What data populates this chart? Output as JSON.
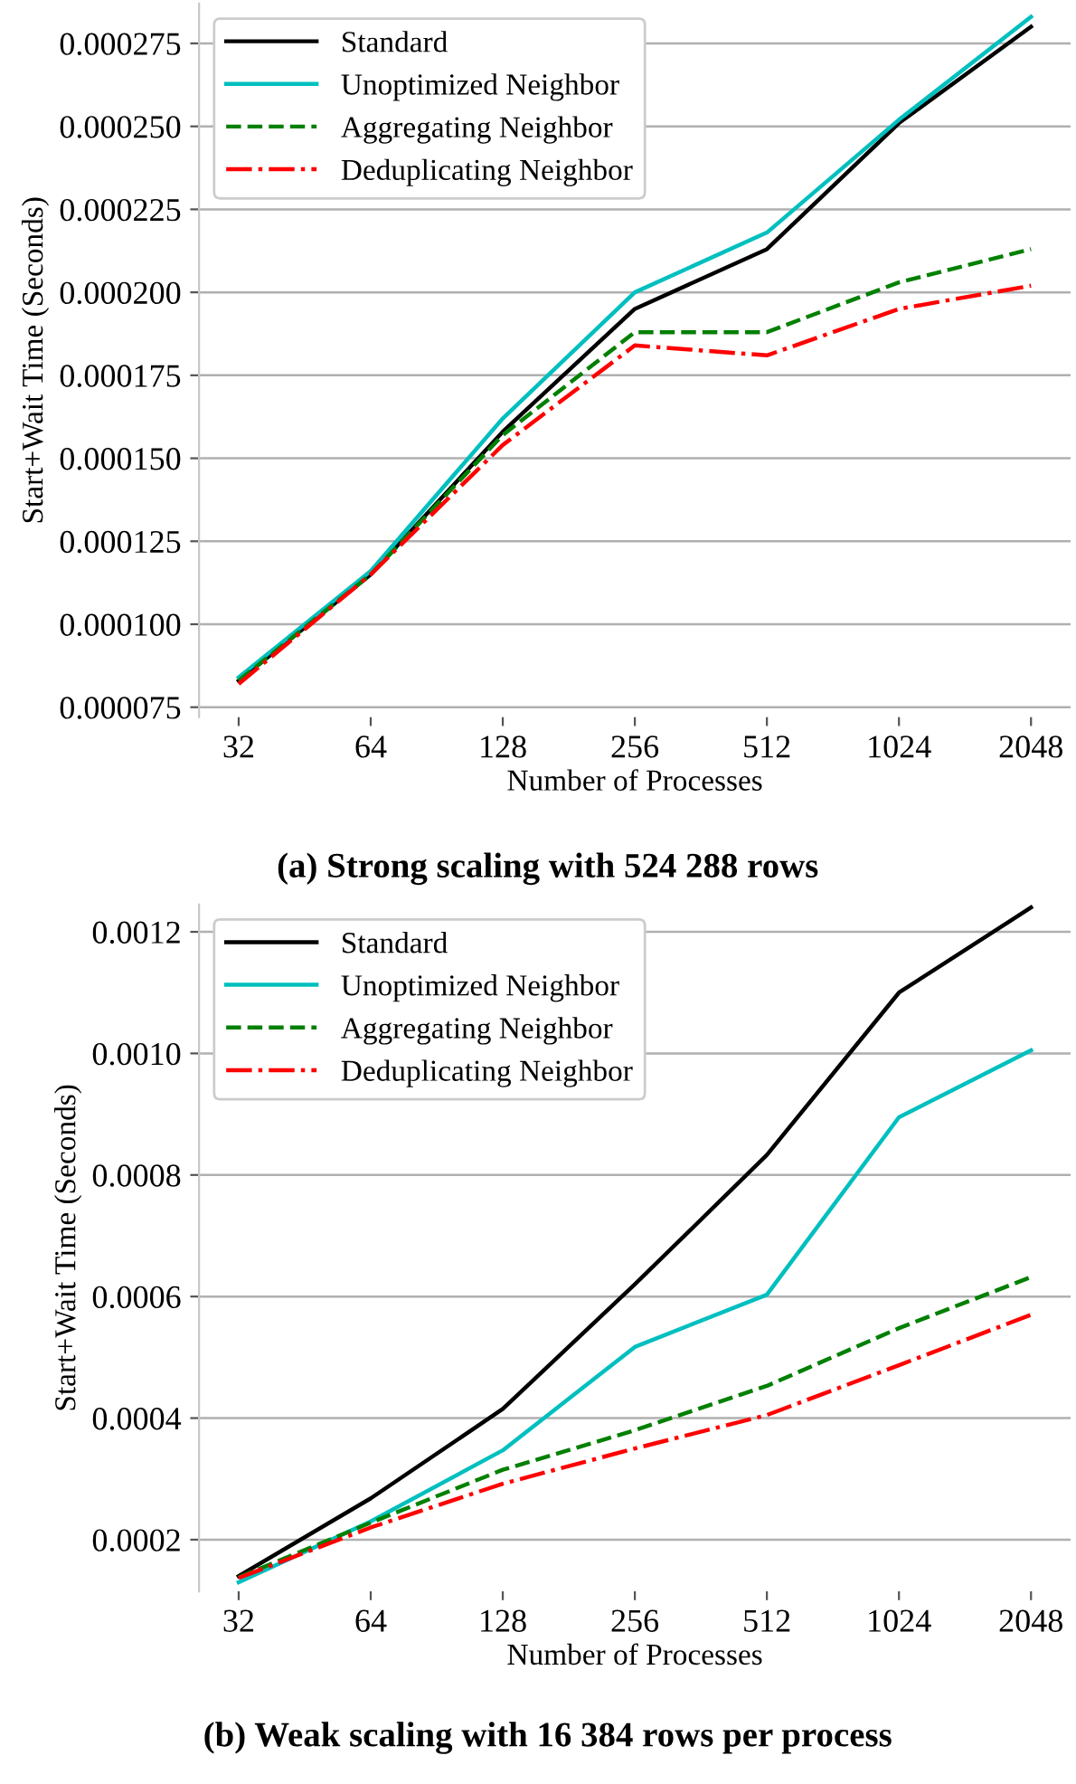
{
  "chart_data": [
    {
      "type": "line",
      "title": "(a) Strong scaling with 524 288 rows",
      "xlabel": "Number of Processes",
      "ylabel": "Start+Wait Time (Seconds)",
      "categories": [
        "32",
        "64",
        "128",
        "256",
        "512",
        "1024",
        "2048"
      ],
      "series": [
        {
          "name": "Standard",
          "color": "#000000",
          "line_style": "solid",
          "values": [
            8.3e-05,
            0.000115,
            0.000158,
            0.000195,
            0.000213,
            0.000251,
            0.00028
          ]
        },
        {
          "name": "Unoptimized Neighbor",
          "color": "#00bfbf",
          "line_style": "solid",
          "values": [
            8.4e-05,
            0.000116,
            0.000162,
            0.0002,
            0.000218,
            0.000252,
            0.000283
          ]
        },
        {
          "name": "Aggregating Neighbor",
          "color": "#008000",
          "line_style": "dashed",
          "values": [
            8.3e-05,
            0.000115,
            0.000157,
            0.000188,
            0.000188,
            0.000203,
            0.000213
          ]
        },
        {
          "name": "Deduplicating Neighbor",
          "color": "#ff0000",
          "line_style": "dashdot",
          "values": [
            8.2e-05,
            0.000115,
            0.000154,
            0.000184,
            0.000181,
            0.000195,
            0.000202
          ]
        }
      ],
      "yticks": [
        {
          "value": 7.5e-05,
          "label": "0.000075"
        },
        {
          "value": 0.0001,
          "label": "0.000100"
        },
        {
          "value": 0.000125,
          "label": "0.000125"
        },
        {
          "value": 0.00015,
          "label": "0.000150"
        },
        {
          "value": 0.000175,
          "label": "0.000175"
        },
        {
          "value": 0.0002,
          "label": "0.000200"
        },
        {
          "value": 0.000225,
          "label": "0.000225"
        },
        {
          "value": 0.00025,
          "label": "0.000250"
        },
        {
          "value": 0.000275,
          "label": "0.000275"
        }
      ],
      "ylim": [
        7.2e-05,
        0.000287
      ],
      "grid": "y",
      "legend": "top left",
      "marker": "none"
    },
    {
      "type": "line",
      "title": "(b) Weak scaling with 16 384 rows per process",
      "xlabel": "Number of Processes",
      "ylabel": "Start+Wait Time (Seconds)",
      "categories": [
        "32",
        "64",
        "128",
        "256",
        "512",
        "1024",
        "2048"
      ],
      "series": [
        {
          "name": "Standard",
          "color": "#000000",
          "line_style": "solid",
          "values": [
            0.00014,
            0.000268,
            0.000415,
            0.00062,
            0.000833,
            0.0011,
            0.00124
          ]
        },
        {
          "name": "Unoptimized Neighbor",
          "color": "#00bfbf",
          "line_style": "solid",
          "values": [
            0.00013,
            0.00023,
            0.000347,
            0.000517,
            0.000603,
            0.000895,
            0.001005
          ]
        },
        {
          "name": "Aggregating Neighbor",
          "color": "#008000",
          "line_style": "dashed",
          "values": [
            0.000138,
            0.000228,
            0.000315,
            0.00038,
            0.000453,
            0.000548,
            0.000632
          ]
        },
        {
          "name": "Deduplicating Neighbor",
          "color": "#ff0000",
          "line_style": "dashdot",
          "values": [
            0.000137,
            0.00022,
            0.000292,
            0.00035,
            0.000405,
            0.000487,
            0.00057
          ]
        }
      ],
      "yticks": [
        0.0002,
        0.0004,
        0.0006,
        0.0008,
        {
          "value": 0.001,
          "label": "0.0010"
        },
        0.0012
      ],
      "ylim": [
        0.000115,
        0.001245
      ],
      "grid": "y",
      "legend": "top left",
      "marker": "none"
    }
  ]
}
